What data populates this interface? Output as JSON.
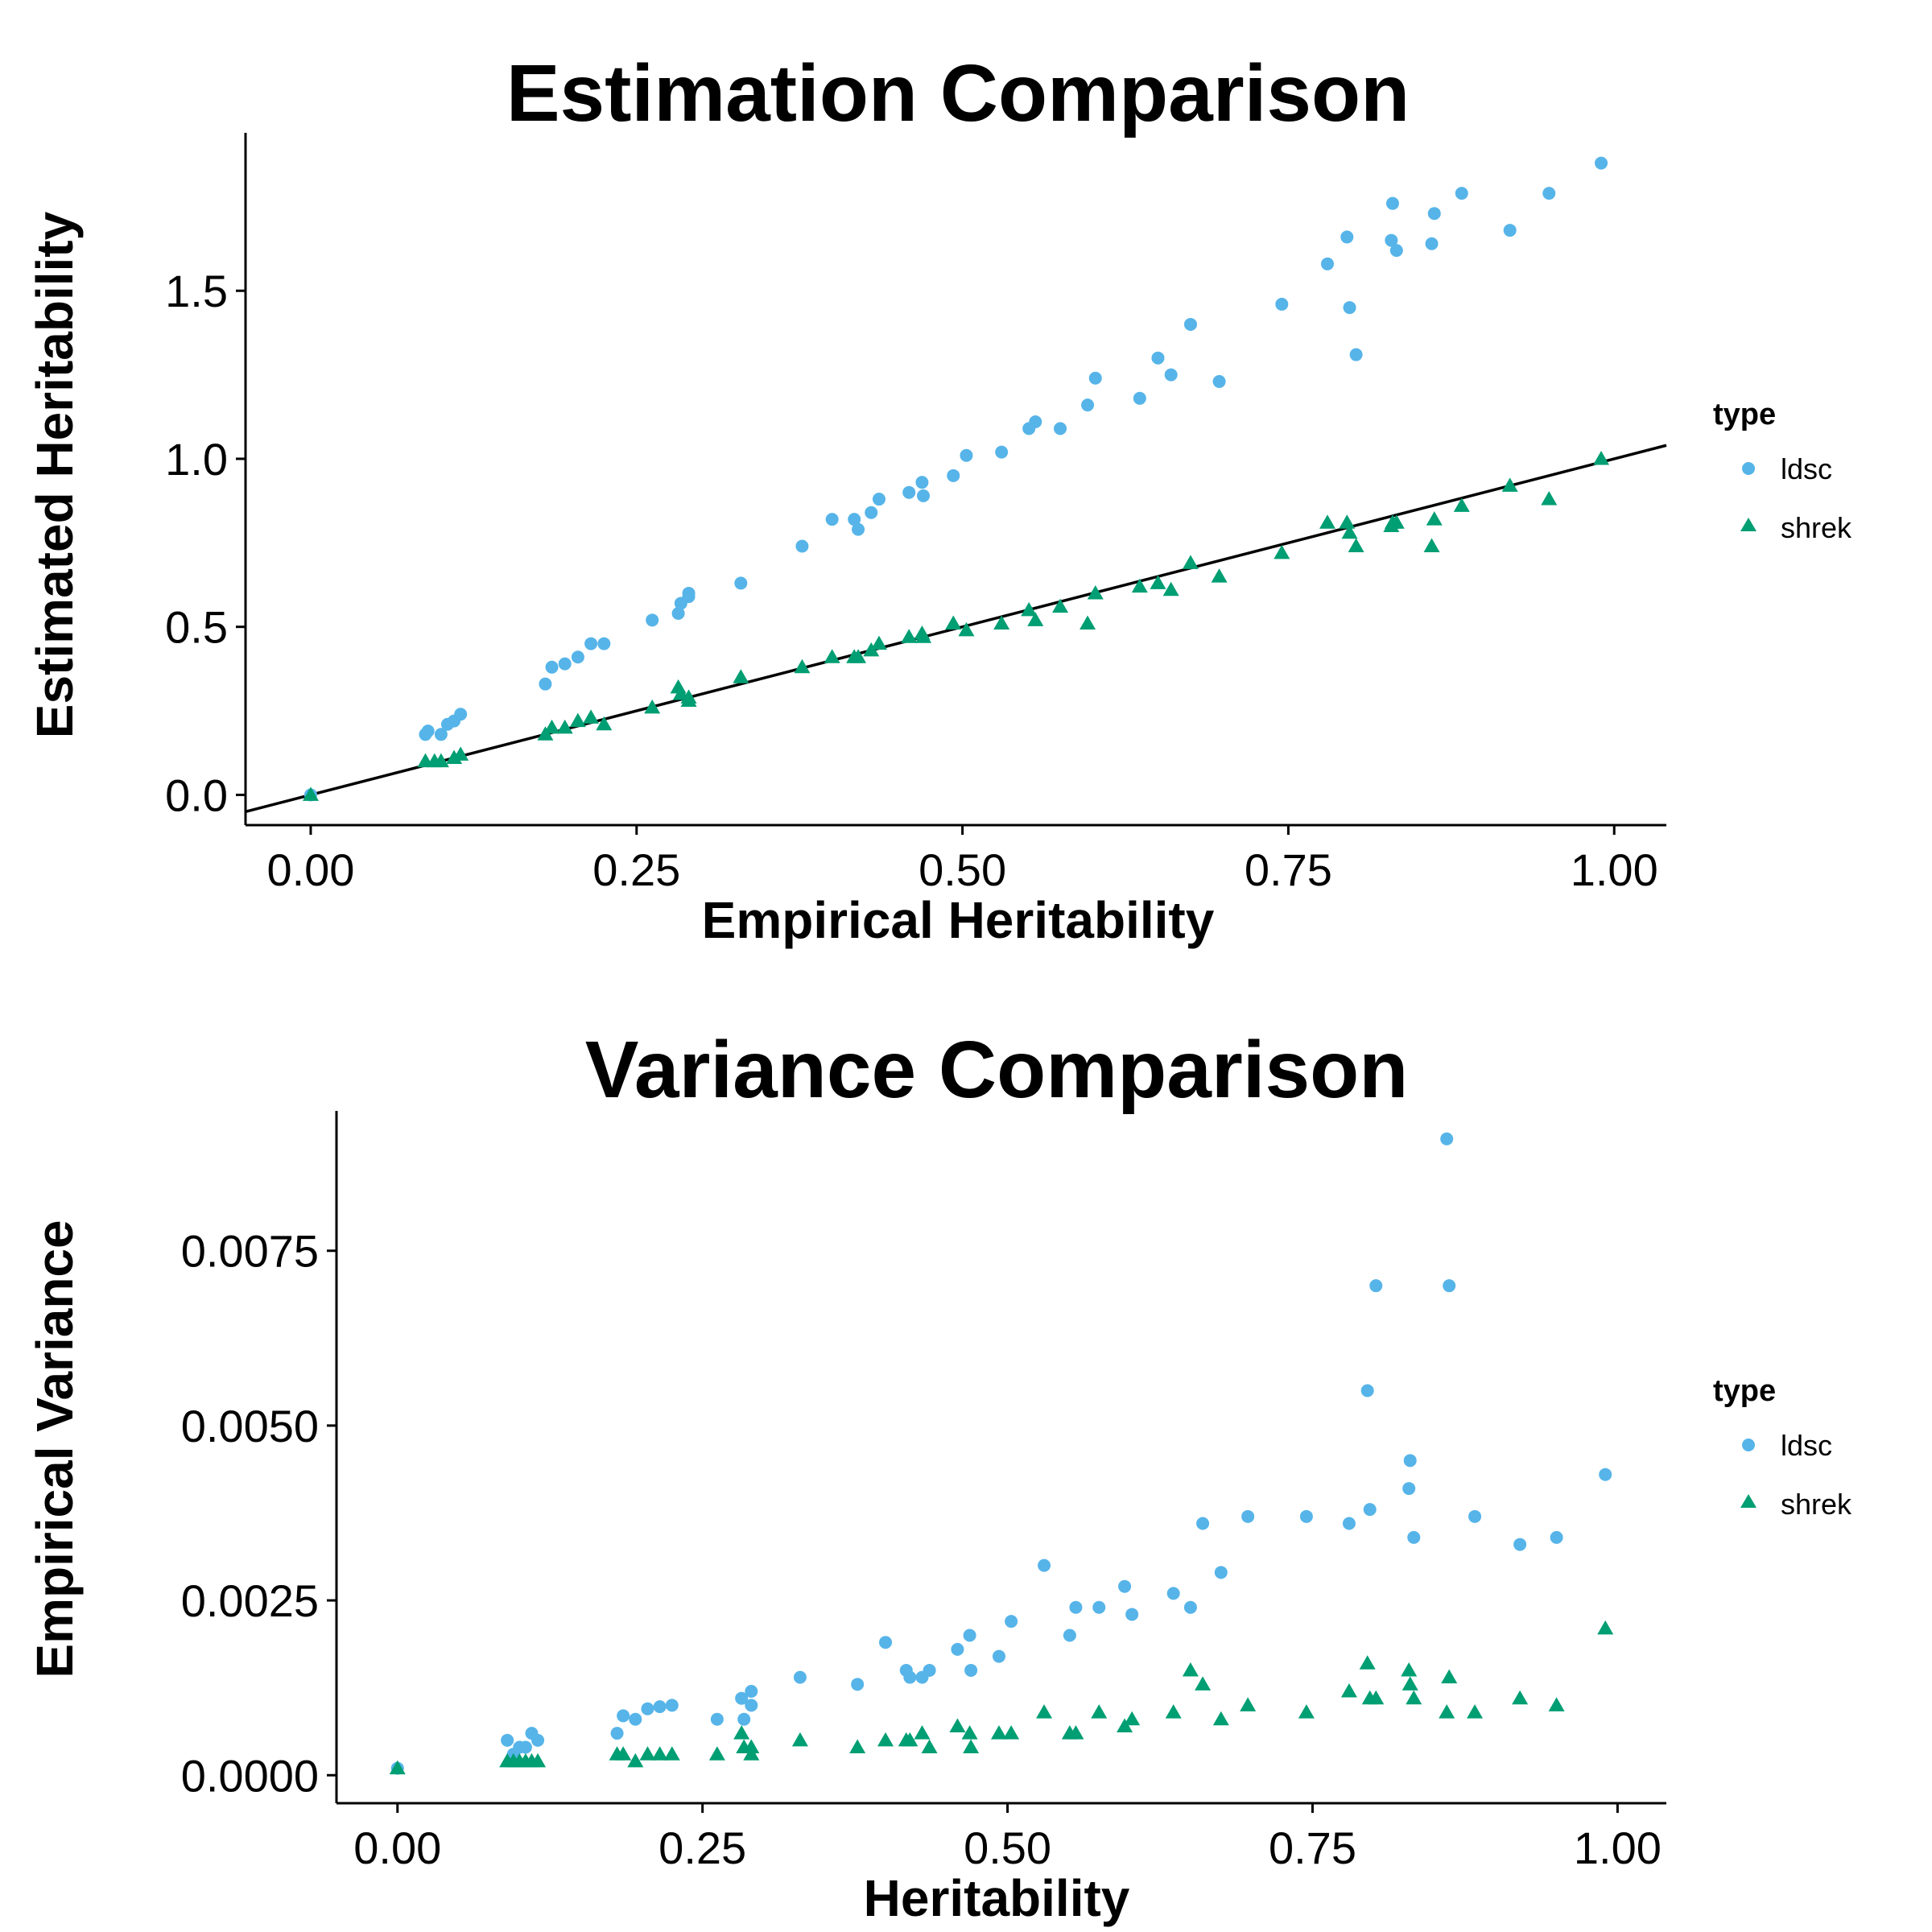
{
  "colors": {
    "ldsc": "#56B4E9",
    "shrek": "#009E73"
  },
  "chart_data": [
    {
      "type": "scatter",
      "title": "Estimation Comparison",
      "xlabel": "Empirical Heritability",
      "ylabel": "Estimated Heritability",
      "xlim": [
        -0.05,
        1.04
      ],
      "ylim": [
        -0.09,
        1.97
      ],
      "xticks": [
        0,
        0.25,
        0.5,
        0.75,
        1
      ],
      "xtick_labels": [
        "0.00",
        "0.25",
        "0.50",
        "0.75",
        "1.00"
      ],
      "yticks": [
        0,
        0.5,
        1,
        1.5
      ],
      "ytick_labels": [
        "0.0",
        "0.5",
        "1.0",
        "1.5"
      ],
      "grid": false,
      "legend": {
        "title": "type",
        "position": "right",
        "labels": [
          "ldsc",
          "shrek"
        ]
      },
      "reference_line": {
        "intercept": 0,
        "slope": 1
      },
      "series": [
        {
          "name": "ldsc",
          "marker": "circle",
          "points": [
            [
              0.0,
              0.0
            ],
            [
              0.088,
              0.18
            ],
            [
              0.09,
              0.19
            ],
            [
              0.1,
              0.18
            ],
            [
              0.105,
              0.21
            ],
            [
              0.11,
              0.22
            ],
            [
              0.115,
              0.24
            ],
            [
              0.18,
              0.33
            ],
            [
              0.185,
              0.38
            ],
            [
              0.195,
              0.39
            ],
            [
              0.205,
              0.41
            ],
            [
              0.215,
              0.45
            ],
            [
              0.225,
              0.45
            ],
            [
              0.262,
              0.52
            ],
            [
              0.282,
              0.54
            ],
            [
              0.284,
              0.57
            ],
            [
              0.29,
              0.59
            ],
            [
              0.29,
              0.6
            ],
            [
              0.33,
              0.63
            ],
            [
              0.377,
              0.74
            ],
            [
              0.4,
              0.82
            ],
            [
              0.417,
              0.82
            ],
            [
              0.42,
              0.79
            ],
            [
              0.43,
              0.84
            ],
            [
              0.436,
              0.88
            ],
            [
              0.459,
              0.9
            ],
            [
              0.469,
              0.93
            ],
            [
              0.47,
              0.89
            ],
            [
              0.493,
              0.95
            ],
            [
              0.503,
              1.01
            ],
            [
              0.53,
              1.02
            ],
            [
              0.551,
              1.09
            ],
            [
              0.556,
              1.11
            ],
            [
              0.575,
              1.09
            ],
            [
              0.596,
              1.16
            ],
            [
              0.602,
              1.24
            ],
            [
              0.636,
              1.18
            ],
            [
              0.65,
              1.3
            ],
            [
              0.66,
              1.25
            ],
            [
              0.675,
              1.4
            ],
            [
              0.697,
              1.23
            ],
            [
              0.745,
              1.46
            ],
            [
              0.78,
              1.58
            ],
            [
              0.795,
              1.66
            ],
            [
              0.797,
              1.45
            ],
            [
              0.802,
              1.31
            ],
            [
              0.829,
              1.65
            ],
            [
              0.83,
              1.76
            ],
            [
              0.833,
              1.62
            ],
            [
              0.86,
              1.64
            ],
            [
              0.862,
              1.73
            ],
            [
              0.883,
              1.79
            ],
            [
              0.92,
              1.68
            ],
            [
              0.95,
              1.79
            ],
            [
              0.99,
              1.88
            ]
          ]
        },
        {
          "name": "shrek",
          "marker": "triangle",
          "points": [
            [
              0.0,
              0.0
            ],
            [
              0.088,
              0.1
            ],
            [
              0.095,
              0.1
            ],
            [
              0.1,
              0.1
            ],
            [
              0.11,
              0.11
            ],
            [
              0.115,
              0.12
            ],
            [
              0.18,
              0.18
            ],
            [
              0.185,
              0.2
            ],
            [
              0.195,
              0.2
            ],
            [
              0.205,
              0.22
            ],
            [
              0.215,
              0.23
            ],
            [
              0.225,
              0.21
            ],
            [
              0.262,
              0.26
            ],
            [
              0.282,
              0.32
            ],
            [
              0.284,
              0.3
            ],
            [
              0.29,
              0.29
            ],
            [
              0.29,
              0.28
            ],
            [
              0.33,
              0.35
            ],
            [
              0.377,
              0.38
            ],
            [
              0.4,
              0.41
            ],
            [
              0.417,
              0.41
            ],
            [
              0.42,
              0.41
            ],
            [
              0.43,
              0.43
            ],
            [
              0.436,
              0.45
            ],
            [
              0.459,
              0.47
            ],
            [
              0.469,
              0.48
            ],
            [
              0.47,
              0.47
            ],
            [
              0.493,
              0.51
            ],
            [
              0.503,
              0.49
            ],
            [
              0.53,
              0.51
            ],
            [
              0.551,
              0.55
            ],
            [
              0.556,
              0.52
            ],
            [
              0.575,
              0.56
            ],
            [
              0.596,
              0.51
            ],
            [
              0.602,
              0.6
            ],
            [
              0.636,
              0.62
            ],
            [
              0.65,
              0.63
            ],
            [
              0.66,
              0.61
            ],
            [
              0.675,
              0.69
            ],
            [
              0.697,
              0.65
            ],
            [
              0.745,
              0.72
            ],
            [
              0.78,
              0.81
            ],
            [
              0.795,
              0.81
            ],
            [
              0.797,
              0.78
            ],
            [
              0.802,
              0.74
            ],
            [
              0.829,
              0.8
            ],
            [
              0.83,
              0.81
            ],
            [
              0.833,
              0.81
            ],
            [
              0.86,
              0.74
            ],
            [
              0.862,
              0.82
            ],
            [
              0.883,
              0.86
            ],
            [
              0.92,
              0.92
            ],
            [
              0.95,
              0.88
            ],
            [
              0.99,
              1.0
            ]
          ]
        }
      ]
    },
    {
      "type": "scatter",
      "title": "Variance Comparison",
      "xlabel": "Heritability",
      "ylabel": "Empirical Variance",
      "xlim": [
        -0.05,
        1.04
      ],
      "ylim": [
        -0.0004,
        0.0095
      ],
      "xticks": [
        0,
        0.25,
        0.5,
        0.75,
        1
      ],
      "xtick_labels": [
        "0.00",
        "0.25",
        "0.50",
        "0.75",
        "1.00"
      ],
      "yticks": [
        0,
        0.0025,
        0.005,
        0.0075
      ],
      "ytick_labels": [
        "0.0000",
        "0.0025",
        "0.0050",
        "0.0075"
      ],
      "grid": false,
      "legend": {
        "title": "type",
        "position": "right",
        "labels": [
          "ldsc",
          "shrek"
        ]
      },
      "series": [
        {
          "name": "ldsc",
          "marker": "circle",
          "points": [
            [
              0.0,
              0.0001
            ],
            [
              0.09,
              0.0005
            ],
            [
              0.095,
              0.0003
            ],
            [
              0.1,
              0.0004
            ],
            [
              0.105,
              0.0004
            ],
            [
              0.11,
              0.0006
            ],
            [
              0.115,
              0.0005
            ],
            [
              0.18,
              0.0006
            ],
            [
              0.185,
              0.00085
            ],
            [
              0.195,
              0.0008
            ],
            [
              0.205,
              0.00095
            ],
            [
              0.215,
              0.00098
            ],
            [
              0.225,
              0.001
            ],
            [
              0.262,
              0.0008
            ],
            [
              0.282,
              0.0011
            ],
            [
              0.284,
              0.0008
            ],
            [
              0.29,
              0.0012
            ],
            [
              0.29,
              0.001
            ],
            [
              0.33,
              0.0014
            ],
            [
              0.377,
              0.0013
            ],
            [
              0.4,
              0.0019
            ],
            [
              0.417,
              0.0015
            ],
            [
              0.42,
              0.0014
            ],
            [
              0.43,
              0.0014
            ],
            [
              0.436,
              0.0015
            ],
            [
              0.459,
              0.0018
            ],
            [
              0.469,
              0.002
            ],
            [
              0.47,
              0.0015
            ],
            [
              0.493,
              0.0017
            ],
            [
              0.503,
              0.0022
            ],
            [
              0.53,
              0.003
            ],
            [
              0.551,
              0.002
            ],
            [
              0.556,
              0.0024
            ],
            [
              0.575,
              0.0024
            ],
            [
              0.596,
              0.0027
            ],
            [
              0.602,
              0.0023
            ],
            [
              0.636,
              0.0026
            ],
            [
              0.65,
              0.0024
            ],
            [
              0.66,
              0.0036
            ],
            [
              0.675,
              0.0029
            ],
            [
              0.697,
              0.0037
            ],
            [
              0.745,
              0.0037
            ],
            [
              0.78,
              0.0036
            ],
            [
              0.795,
              0.0055
            ],
            [
              0.797,
              0.0038
            ],
            [
              0.802,
              0.007
            ],
            [
              0.829,
              0.0041
            ],
            [
              0.83,
              0.0045
            ],
            [
              0.833,
              0.0034
            ],
            [
              0.86,
              0.0091
            ],
            [
              0.862,
              0.007
            ],
            [
              0.883,
              0.0037
            ],
            [
              0.92,
              0.0033
            ],
            [
              0.95,
              0.0034
            ],
            [
              0.99,
              0.0043
            ]
          ]
        },
        {
          "name": "shrek",
          "marker": "triangle",
          "points": [
            [
              0.0,
              0.0001
            ],
            [
              0.09,
              0.0002
            ],
            [
              0.095,
              0.0002
            ],
            [
              0.1,
              0.0002
            ],
            [
              0.105,
              0.0002
            ],
            [
              0.11,
              0.0002
            ],
            [
              0.115,
              0.0002
            ],
            [
              0.18,
              0.0003
            ],
            [
              0.185,
              0.0003
            ],
            [
              0.195,
              0.0002
            ],
            [
              0.205,
              0.0003
            ],
            [
              0.215,
              0.0003
            ],
            [
              0.225,
              0.0003
            ],
            [
              0.262,
              0.0003
            ],
            [
              0.282,
              0.0006
            ],
            [
              0.284,
              0.0004
            ],
            [
              0.29,
              0.0003
            ],
            [
              0.29,
              0.0004
            ],
            [
              0.33,
              0.0005
            ],
            [
              0.377,
              0.0004
            ],
            [
              0.4,
              0.0005
            ],
            [
              0.417,
              0.0005
            ],
            [
              0.42,
              0.0005
            ],
            [
              0.43,
              0.0006
            ],
            [
              0.436,
              0.0004
            ],
            [
              0.459,
              0.0007
            ],
            [
              0.469,
              0.0006
            ],
            [
              0.47,
              0.0004
            ],
            [
              0.493,
              0.0006
            ],
            [
              0.503,
              0.0006
            ],
            [
              0.53,
              0.0009
            ],
            [
              0.551,
              0.0006
            ],
            [
              0.556,
              0.0006
            ],
            [
              0.575,
              0.0009
            ],
            [
              0.596,
              0.0007
            ],
            [
              0.602,
              0.0008
            ],
            [
              0.636,
              0.0009
            ],
            [
              0.65,
              0.0015
            ],
            [
              0.66,
              0.0013
            ],
            [
              0.675,
              0.0008
            ],
            [
              0.697,
              0.001
            ],
            [
              0.745,
              0.0009
            ],
            [
              0.78,
              0.0012
            ],
            [
              0.795,
              0.0016
            ],
            [
              0.797,
              0.0011
            ],
            [
              0.802,
              0.0011
            ],
            [
              0.829,
              0.0015
            ],
            [
              0.83,
              0.0013
            ],
            [
              0.833,
              0.0011
            ],
            [
              0.86,
              0.0009
            ],
            [
              0.862,
              0.0014
            ],
            [
              0.883,
              0.0009
            ],
            [
              0.92,
              0.0011
            ],
            [
              0.95,
              0.001
            ],
            [
              0.99,
              0.0021
            ]
          ]
        }
      ]
    }
  ]
}
